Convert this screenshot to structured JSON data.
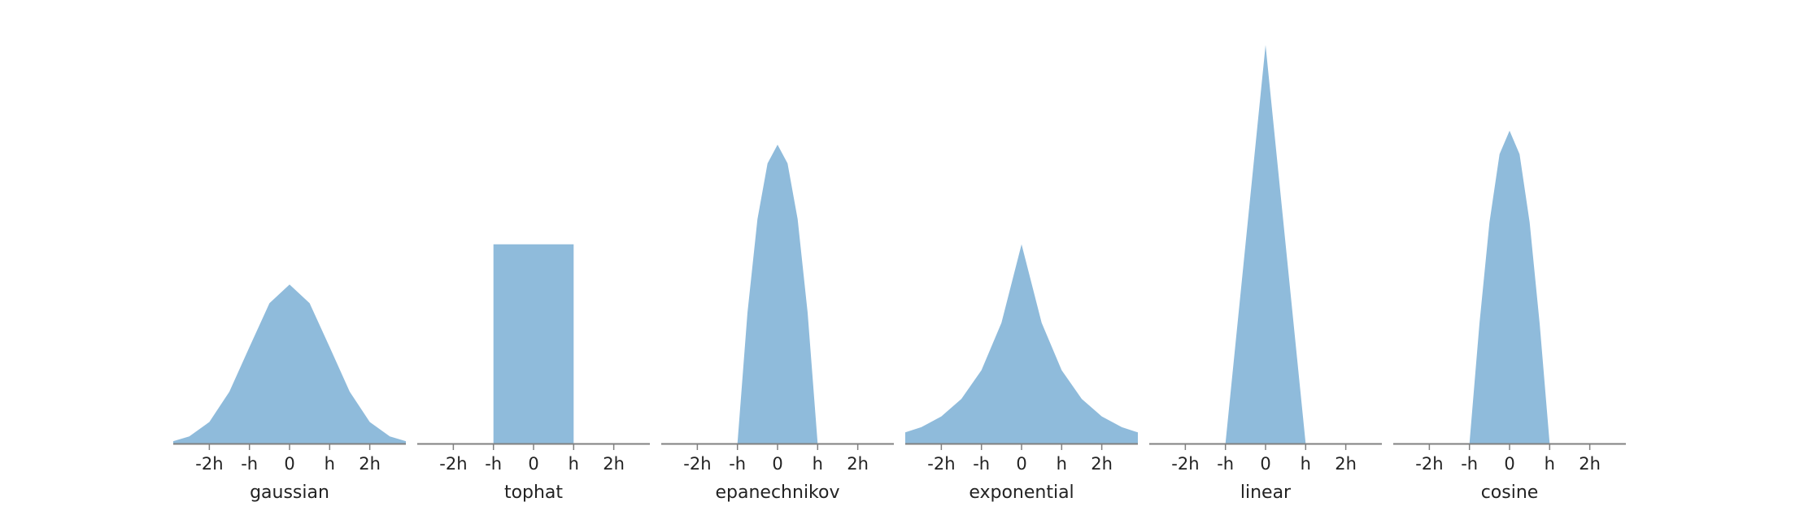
{
  "chart_data": [
    {
      "type": "area",
      "xlabel": "gaussian",
      "tick_labels": [
        "-2h",
        "-h",
        "0",
        "h",
        "2h"
      ],
      "xticks": [
        -2,
        -1,
        0,
        1,
        2
      ],
      "xlim": [
        -2.9,
        2.9
      ],
      "ylim": [
        0,
        1.06
      ],
      "x": [
        -2.9,
        -2.5,
        -2.0,
        -1.5,
        -1.0,
        -0.5,
        0,
        0.5,
        1.0,
        1.5,
        2.0,
        2.5,
        2.9
      ],
      "y": [
        0.006,
        0.018,
        0.054,
        0.13,
        0.242,
        0.352,
        0.399,
        0.352,
        0.242,
        0.13,
        0.054,
        0.018,
        0.006
      ]
    },
    {
      "type": "area",
      "xlabel": "tophat",
      "tick_labels": [
        "-2h",
        "-h",
        "0",
        "h",
        "2h"
      ],
      "xticks": [
        -2,
        -1,
        0,
        1,
        2
      ],
      "xlim": [
        -2.9,
        2.9
      ],
      "ylim": [
        0,
        1.06
      ],
      "x": [
        -2.9,
        -1.0,
        -1.0,
        1.0,
        1.0,
        2.9
      ],
      "y": [
        0,
        0,
        0.5,
        0.5,
        0,
        0
      ]
    },
    {
      "type": "area",
      "xlabel": "epanechnikov",
      "tick_labels": [
        "-2h",
        "-h",
        "0",
        "h",
        "2h"
      ],
      "xticks": [
        -2,
        -1,
        0,
        1,
        2
      ],
      "xlim": [
        -2.9,
        2.9
      ],
      "ylim": [
        0,
        1.06
      ],
      "x": [
        -2.9,
        -1.0,
        -0.75,
        -0.5,
        -0.25,
        0,
        0.25,
        0.5,
        0.75,
        1.0,
        2.9
      ],
      "y": [
        0,
        0,
        0.328,
        0.563,
        0.703,
        0.75,
        0.703,
        0.563,
        0.328,
        0,
        0
      ]
    },
    {
      "type": "area",
      "xlabel": "exponential",
      "tick_labels": [
        "-2h",
        "-h",
        "0",
        "h",
        "2h"
      ],
      "xticks": [
        -2,
        -1,
        0,
        1,
        2
      ],
      "xlim": [
        -2.9,
        2.9
      ],
      "ylim": [
        0,
        1.06
      ],
      "x": [
        -2.9,
        -2.5,
        -2.0,
        -1.5,
        -1.0,
        -0.5,
        0,
        0.5,
        1.0,
        1.5,
        2.0,
        2.5,
        2.9
      ],
      "y": [
        0.028,
        0.041,
        0.068,
        0.112,
        0.184,
        0.303,
        0.5,
        0.303,
        0.184,
        0.112,
        0.068,
        0.041,
        0.028
      ]
    },
    {
      "type": "area",
      "xlabel": "linear",
      "tick_labels": [
        "-2h",
        "-h",
        "0",
        "h",
        "2h"
      ],
      "xticks": [
        -2,
        -1,
        0,
        1,
        2
      ],
      "xlim": [
        -2.9,
        2.9
      ],
      "ylim": [
        0,
        1.06
      ],
      "x": [
        -2.9,
        -1.0,
        0,
        1.0,
        2.9
      ],
      "y": [
        0,
        0,
        1.0,
        0,
        0
      ]
    },
    {
      "type": "area",
      "xlabel": "cosine",
      "tick_labels": [
        "-2h",
        "-h",
        "0",
        "h",
        "2h"
      ],
      "xticks": [
        -2,
        -1,
        0,
        1,
        2
      ],
      "xlim": [
        -2.9,
        2.9
      ],
      "ylim": [
        0,
        1.06
      ],
      "x": [
        -2.9,
        -1.0,
        -0.75,
        -0.5,
        -0.25,
        0,
        0.25,
        0.5,
        0.75,
        1.0,
        2.9
      ],
      "y": [
        0,
        0,
        0.301,
        0.555,
        0.726,
        0.785,
        0.726,
        0.555,
        0.301,
        0,
        0
      ]
    }
  ],
  "colors": {
    "fill": "#8fbbdb",
    "axis": "#808080",
    "text": "#222222"
  }
}
